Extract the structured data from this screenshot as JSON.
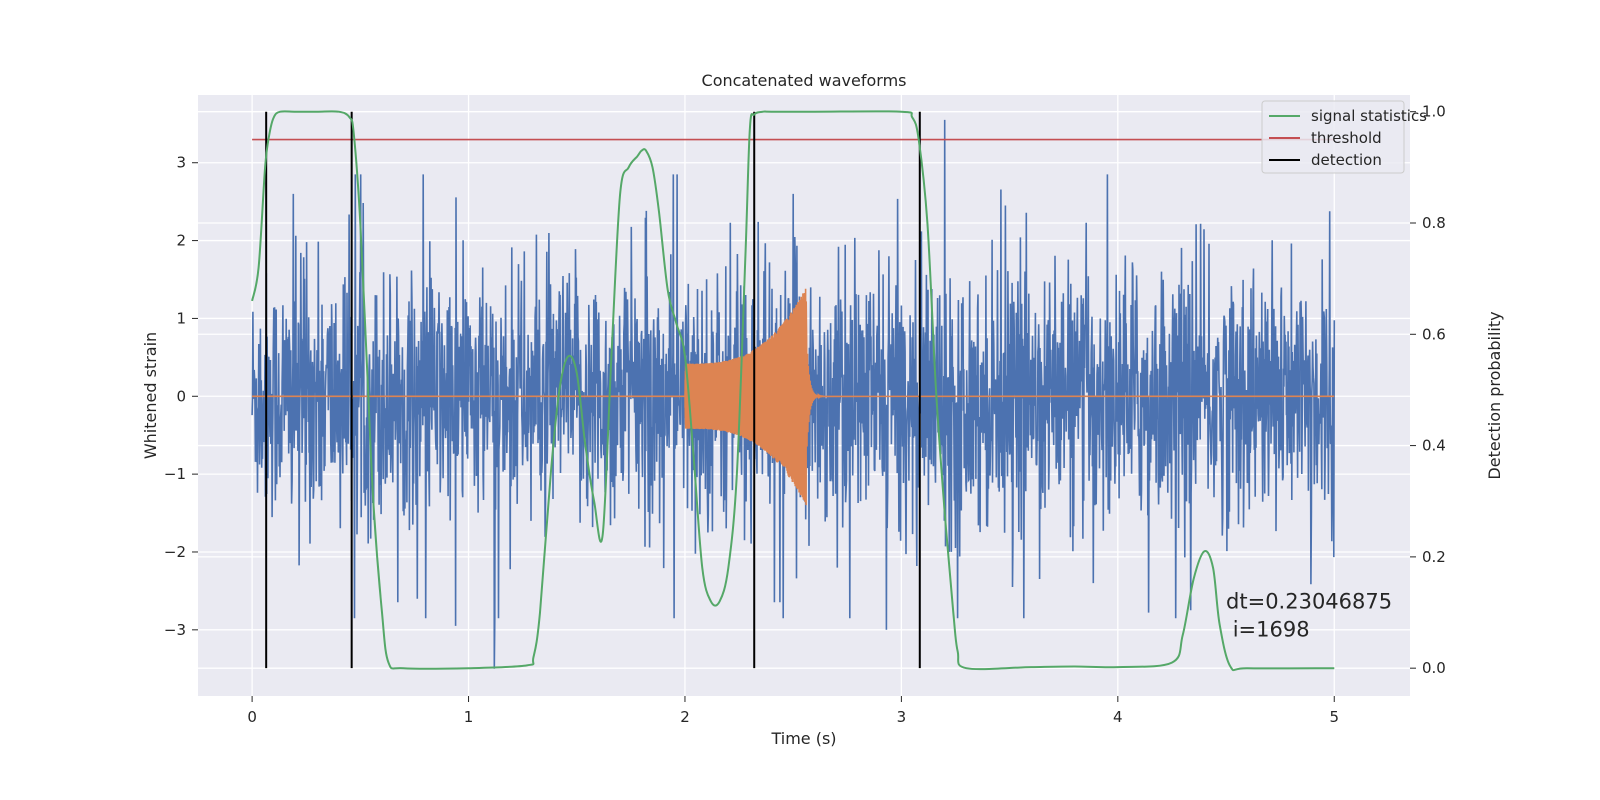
{
  "chart_data": {
    "type": "line",
    "title": "Concatenated waveforms",
    "xlabel": "Time (s)",
    "ylabel_left": "Whitened strain",
    "ylabel_right": "Detection probability",
    "xlim": [
      -0.25,
      5.35
    ],
    "ylim_left": [
      -3.85,
      3.87
    ],
    "ylim_right": [
      -0.05,
      1.03
    ],
    "xticks": [
      0,
      1,
      2,
      3,
      4,
      5
    ],
    "xtick_labels": [
      "0",
      "1",
      "2",
      "3",
      "4",
      "5"
    ],
    "yticks_left": [
      -3,
      -2,
      -1,
      0,
      1,
      2,
      3
    ],
    "ytick_labels_left": [
      "−3",
      "−2",
      "−1",
      "0",
      "1",
      "2",
      "3"
    ],
    "yticks_right": [
      0.0,
      0.2,
      0.4,
      0.6,
      0.8,
      1.0
    ],
    "ytick_labels_right": [
      "0.0",
      "0.2",
      "0.4",
      "0.6",
      "0.8",
      "1.0"
    ],
    "grid": true,
    "legend_position": "top-right",
    "colors": {
      "background": "#eaeaf2",
      "grid": "#ffffff",
      "strain": "#4c72b0",
      "waveform": "#dd8452",
      "signal": "#55a868",
      "threshold": "#c44e52",
      "detection": "#000000"
    },
    "series": [
      {
        "name": "strain",
        "axis": "left",
        "style": "noise",
        "x_range": [
          0,
          5
        ],
        "spikes": [
          [
            1.12,
            -3.5
          ],
          [
            3.2,
            3.55
          ],
          [
            0.19,
            2.6
          ],
          [
            2.5,
            2.6
          ],
          [
            3.48,
            2.45
          ],
          [
            2.93,
            -3.0
          ],
          [
            0.94,
            -2.95
          ]
        ]
      },
      {
        "name": "waveform",
        "axis": "left",
        "style": "chirp",
        "x_range": [
          0,
          5
        ],
        "chirp_start": 2.0,
        "chirp_end": 2.56,
        "start_amplitude": 0.42,
        "end_amplitude": 1.4
      },
      {
        "name": "signal statistics",
        "axis": "right",
        "x": [
          0,
          0.03,
          0.06,
          0.08,
          0.1,
          0.13,
          0.2,
          0.3,
          0.4,
          0.45,
          0.47,
          0.5,
          0.53,
          0.56,
          0.6,
          0.63,
          0.7,
          1.0,
          1.27,
          1.3,
          1.33,
          1.38,
          1.42,
          1.46,
          1.5,
          1.54,
          1.58,
          1.62,
          1.66,
          1.7,
          1.74,
          1.78,
          1.8,
          1.82,
          1.85,
          1.88,
          1.92,
          1.96,
          2.0,
          2.04,
          2.08,
          2.12,
          2.16,
          2.2,
          2.24,
          2.28,
          2.3,
          2.32,
          2.36,
          2.4,
          2.6,
          3.0,
          3.05,
          3.08,
          3.12,
          3.16,
          3.2,
          3.24,
          3.26,
          3.3,
          3.6,
          3.8,
          4.0,
          4.25,
          4.3,
          4.35,
          4.4,
          4.44,
          4.47,
          4.52,
          4.6,
          5.0
        ],
        "y": [
          0.66,
          0.72,
          0.9,
          0.96,
          0.99,
          1.0,
          1.0,
          1.0,
          1.0,
          0.99,
          0.96,
          0.8,
          0.55,
          0.3,
          0.1,
          0.01,
          0.0,
          0.0,
          0.005,
          0.02,
          0.1,
          0.35,
          0.5,
          0.56,
          0.53,
          0.4,
          0.3,
          0.24,
          0.56,
          0.85,
          0.9,
          0.92,
          0.93,
          0.93,
          0.9,
          0.82,
          0.68,
          0.62,
          0.56,
          0.38,
          0.18,
          0.12,
          0.12,
          0.18,
          0.35,
          0.75,
          0.97,
          0.995,
          1.0,
          1.0,
          1.0,
          1.0,
          0.99,
          0.95,
          0.8,
          0.5,
          0.28,
          0.1,
          0.03,
          0.0,
          0.002,
          0.003,
          0.002,
          0.01,
          0.06,
          0.16,
          0.21,
          0.18,
          0.08,
          0.003,
          0.0,
          0.0
        ]
      },
      {
        "name": "threshold",
        "axis": "right",
        "x": [
          0,
          5
        ],
        "y": [
          0.95,
          0.95
        ]
      },
      {
        "name": "detection",
        "axis": "right",
        "style": "vlines",
        "x": [
          0.065,
          0.46,
          2.32,
          3.085
        ],
        "y_range": [
          0.0,
          1.0
        ]
      }
    ],
    "legend": [
      {
        "label": "signal statistics",
        "color": "#55a868"
      },
      {
        "label": "threshold",
        "color": "#c44e52"
      },
      {
        "label": "detection",
        "color": "#000000"
      }
    ],
    "annotation": {
      "line1": "dt=0.23046875",
      "line2": " i=1698",
      "x": 4.5,
      "y": 0.1
    }
  }
}
